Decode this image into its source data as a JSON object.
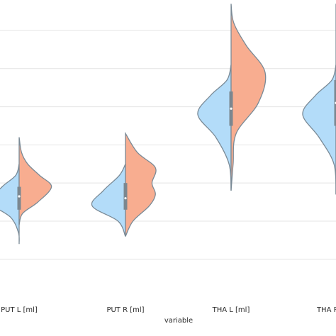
{
  "chart_data": {
    "type": "violin",
    "xlabel": "variable",
    "ylabel": "",
    "categories": [
      "PUT L [ml]",
      "PUT R [ml]",
      "THA L [ml]",
      "THA R [ml]"
    ],
    "ylim": [
      1.9,
      9.3
    ],
    "gridlines": [
      2.5,
      3.5,
      4.5,
      5.5,
      6.5,
      7.5,
      8.5
    ],
    "grid": true,
    "legend": "none",
    "colors": {
      "left": "#b3dcf9",
      "right": "#f8ad90",
      "box": "#7b8790",
      "median": "#ffffff"
    },
    "violins": [
      {
        "category": "PUT L [ml]",
        "left": {
          "y": [
            2.9,
            3.2,
            3.6,
            4.0,
            4.4,
            4.7,
            5.0
          ],
          "density": [
            0.0,
            0.02,
            0.25,
            0.85,
            0.5,
            0.1,
            0.0
          ]
        },
        "right": {
          "y": [
            3.4,
            3.7,
            4.0,
            4.4,
            4.7,
            5.0,
            5.3,
            5.7
          ],
          "density": [
            0.0,
            0.1,
            0.55,
            0.95,
            0.6,
            0.25,
            0.07,
            0.0
          ]
        },
        "box": {
          "q1": 3.8,
          "q3": 4.4,
          "median": 4.15
        }
      },
      {
        "category": "PUT R [ml]",
        "left": {
          "y": [
            3.1,
            3.5,
            3.9,
            4.3,
            4.7,
            5.0
          ],
          "density": [
            0.0,
            0.22,
            0.98,
            0.65,
            0.18,
            0.0
          ]
        },
        "right": {
          "y": [
            3.1,
            3.5,
            3.9,
            4.2,
            4.5,
            4.9,
            5.3,
            5.8
          ],
          "density": [
            0.0,
            0.22,
            0.7,
            0.88,
            0.78,
            0.88,
            0.35,
            0.0
          ]
        },
        "box": {
          "q1": 3.8,
          "q3": 4.5,
          "median": 4.1
        }
      },
      {
        "category": "THA L [ml]",
        "left": {
          "y": [
            4.3,
            5.0,
            5.7,
            6.3,
            6.8,
            7.2,
            7.6
          ],
          "density": [
            0.0,
            0.06,
            0.45,
            0.98,
            0.6,
            0.12,
            0.0
          ]
        },
        "right": {
          "y": [
            4.3,
            5.0,
            5.8,
            6.6,
            7.4,
            8.1,
            8.7,
            9.2
          ],
          "density": [
            0.0,
            0.06,
            0.15,
            0.8,
            1.0,
            0.45,
            0.08,
            0.0
          ]
        },
        "box": {
          "q1": 6.0,
          "q3": 6.9,
          "median": 6.45
        }
      },
      {
        "category": "THA R [ml]",
        "left": {
          "y": [
            4.2,
            5.0,
            5.7,
            6.3,
            6.8,
            7.2,
            7.6
          ],
          "density": [
            0.0,
            0.06,
            0.5,
            0.98,
            0.6,
            0.12,
            0.0
          ]
        },
        "right": {
          "y": [
            4.2,
            5.0,
            5.8,
            6.6,
            7.4,
            8.1,
            8.7,
            9.2
          ],
          "density": [
            0.0,
            0.06,
            0.15,
            0.8,
            1.0,
            0.45,
            0.08,
            0.0
          ]
        },
        "box": {
          "q1": 6.0,
          "q3": 7.2,
          "median": 6.6
        }
      }
    ]
  }
}
